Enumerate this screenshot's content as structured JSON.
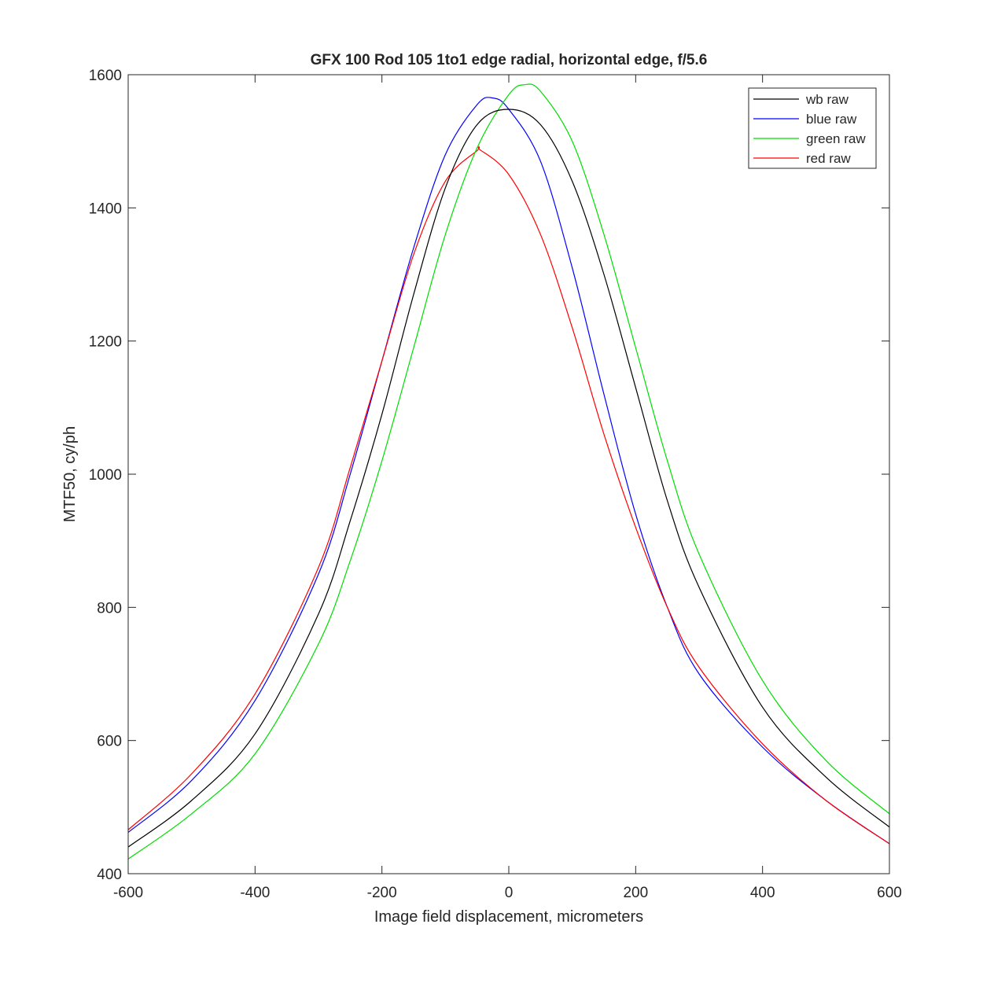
{
  "chart_data": {
    "type": "line",
    "title": "GFX 100 Rod 105 1to1 edge radial, horizontal edge, f/5.6",
    "xlabel": "Image field displacement, micrometers",
    "ylabel": "MTF50, cy/ph",
    "xlim": [
      -600,
      600
    ],
    "ylim": [
      400,
      1600
    ],
    "xticks": [
      -600,
      -400,
      -200,
      0,
      200,
      400,
      600
    ],
    "yticks": [
      400,
      600,
      800,
      1000,
      1200,
      1400,
      1600
    ],
    "grid": false,
    "legend_position": "top-right",
    "series": [
      {
        "name": "wb raw",
        "color": "#000000",
        "x": [
          -600,
          -500,
          -400,
          -300,
          -250,
          -200,
          -150,
          -100,
          -50,
          0,
          50,
          100,
          150,
          200,
          250,
          300,
          400,
          500,
          600
        ],
        "y": [
          440,
          510,
          610,
          790,
          930,
          1090,
          1270,
          1430,
          1525,
          1548,
          1525,
          1440,
          1300,
          1130,
          960,
          830,
          650,
          545,
          470
        ]
      },
      {
        "name": "blue raw",
        "color": "#0000ff",
        "x": [
          -600,
          -500,
          -400,
          -300,
          -250,
          -200,
          -150,
          -100,
          -50,
          -25,
          0,
          50,
          100,
          150,
          200,
          250,
          300,
          400,
          500,
          600
        ],
        "y": [
          462,
          540,
          660,
          850,
          1000,
          1170,
          1340,
          1480,
          1555,
          1565,
          1548,
          1470,
          1310,
          1120,
          940,
          800,
          700,
          590,
          510,
          445
        ]
      },
      {
        "name": "green raw",
        "color": "#00dd00",
        "x": [
          -600,
          -500,
          -400,
          -300,
          -250,
          -200,
          -150,
          -100,
          -50,
          0,
          25,
          50,
          100,
          150,
          200,
          250,
          300,
          400,
          500,
          600
        ],
        "y": [
          422,
          490,
          580,
          745,
          870,
          1020,
          1190,
          1360,
          1490,
          1570,
          1585,
          1575,
          1500,
          1360,
          1190,
          1020,
          880,
          690,
          570,
          490
        ]
      },
      {
        "name": "red raw",
        "color": "#ff0000",
        "x": [
          -600,
          -500,
          -400,
          -300,
          -250,
          -200,
          -150,
          -100,
          -50,
          -45,
          0,
          50,
          100,
          150,
          200,
          250,
          300,
          400,
          500,
          600
        ],
        "y": [
          466,
          550,
          670,
          860,
          1010,
          1170,
          1330,
          1440,
          1486,
          1487,
          1450,
          1360,
          1220,
          1060,
          920,
          800,
          710,
          595,
          510,
          445
        ]
      }
    ]
  }
}
